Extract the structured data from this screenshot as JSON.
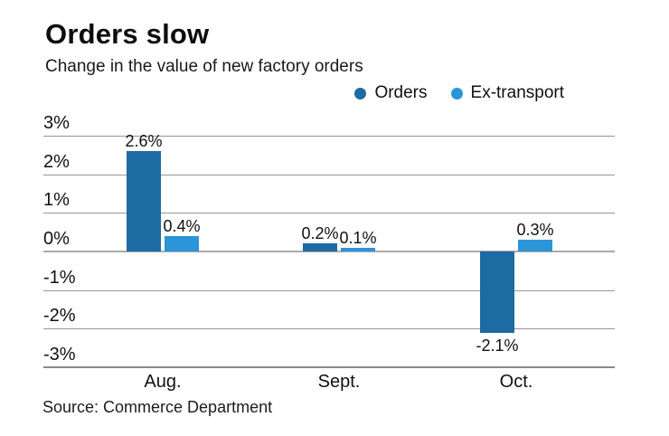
{
  "header": {
    "title": "Orders slow",
    "subtitle": "Change in the value of new factory orders"
  },
  "legend": [
    {
      "label": "Orders",
      "color": "#1c6ba3",
      "icon": "legend-dot-icon"
    },
    {
      "label": "Ex-transport",
      "color": "#2b95d8",
      "icon": "legend-dot-icon"
    }
  ],
  "chart_data": {
    "type": "bar",
    "title": "Orders slow",
    "subtitle": "Change in the value of new factory orders",
    "categories": [
      "Aug.",
      "Sept.",
      "Oct."
    ],
    "series": [
      {
        "name": "Orders",
        "color": "#1c6ba3",
        "values": [
          2.6,
          0.2,
          -2.1
        ],
        "labels": [
          "2.6%",
          "0.2%",
          "-2.1%"
        ]
      },
      {
        "name": "Ex-transport",
        "color": "#2b95d8",
        "values": [
          0.4,
          0.1,
          0.3
        ],
        "labels": [
          "0.4%",
          "0.1%",
          "0.3%"
        ]
      }
    ],
    "xlabel": "",
    "ylabel": "",
    "ylim": [
      -3,
      3
    ],
    "ytick_labels": [
      "3%",
      "2%",
      "1%",
      "0%",
      "-1%",
      "-2%",
      "-3%"
    ],
    "grid": true,
    "legend_position": "top-right"
  },
  "source": "Source: Commerce Department"
}
